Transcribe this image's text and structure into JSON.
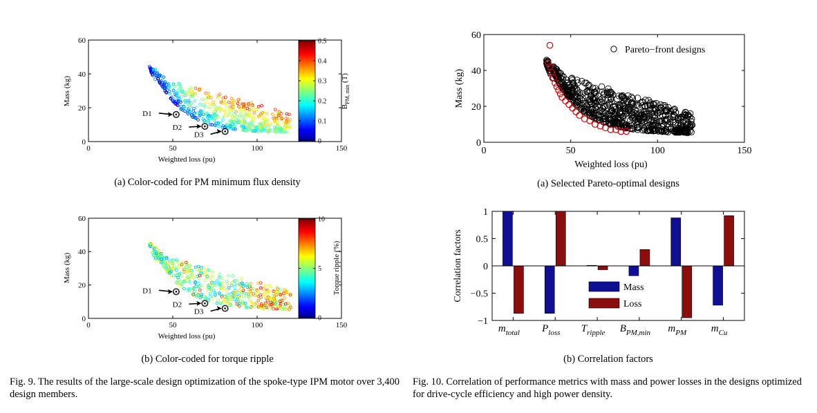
{
  "fig9": {
    "caption_a": "(a) Color-coded for PM minimum flux density",
    "caption_b": "(b) Color-coded for torque ripple",
    "caption": "Fig. 9.  The results of the large-scale design optimization of the spoke-type IPM motor over 3,400 design members.",
    "colors": {
      "jet_low": "#00008f",
      "jet_high": "#800000",
      "design_marker": "#222222"
    }
  },
  "fig10": {
    "caption_a": "(a) Selected Pareto-optimal designs",
    "caption_b": "(b) Correlation factors",
    "caption": "Fig. 10.  Correlation of performance metrics with mass and power losses in the designs optimized for drive-cycle efficiency and high power density.",
    "colors": {
      "pareto_all": "#000000",
      "pareto_front": "#cc0000"
    }
  },
  "chart_data": [
    {
      "id": "fig9a",
      "type": "scatter",
      "xlabel": "Weighted loss (pu)",
      "ylabel": "Mass (kg)",
      "xlim": [
        0,
        150
      ],
      "ylim": [
        0,
        60
      ],
      "xticks": [
        "0",
        "50",
        "100",
        "150"
      ],
      "yticks": [
        "0",
        "20",
        "40",
        "60"
      ],
      "colorbar": {
        "label": "B",
        "label_sub": "PM, min",
        "label_unit": " (T)",
        "range": [
          0,
          0.5
        ],
        "ticks": [
          "0",
          "0.1",
          "0.2",
          "0.3",
          "0.4",
          "0.5"
        ]
      },
      "points_description": "3,400 design members colored by PM minimum flux density",
      "designs": [
        {
          "label": "D1",
          "x": 52,
          "y": 16
        },
        {
          "label": "D2",
          "x": 69,
          "y": 9
        },
        {
          "label": "D3",
          "x": 81,
          "y": 6
        }
      ]
    },
    {
      "id": "fig9b",
      "type": "scatter",
      "xlabel": "Weighted loss (pu)",
      "ylabel": "Mass (kg)",
      "xlim": [
        0,
        150
      ],
      "ylim": [
        0,
        60
      ],
      "xticks": [
        "0",
        "50",
        "100",
        "150"
      ],
      "yticks": [
        "0",
        "20",
        "40",
        "60"
      ],
      "colorbar": {
        "label": "Torque ripple (%)",
        "range": [
          0,
          10
        ],
        "ticks": [
          "0",
          "5",
          "10"
        ]
      },
      "designs": [
        {
          "label": "D1",
          "x": 52,
          "y": 16
        },
        {
          "label": "D2",
          "x": 69,
          "y": 9
        },
        {
          "label": "D3",
          "x": 81,
          "y": 6
        }
      ]
    },
    {
      "id": "fig10a",
      "type": "scatter",
      "xlabel": "Weighted loss (pu)",
      "ylabel": "Mass (kg)",
      "xlim": [
        0,
        150
      ],
      "ylim": [
        0,
        60
      ],
      "xticks": [
        "0",
        "50",
        "100",
        "150"
      ],
      "yticks": [
        "0",
        "20",
        "40",
        "60"
      ],
      "legend": "Pareto−front designs",
      "legend_position": "top-right",
      "front_points": [
        [
          38,
          54
        ],
        [
          37,
          44
        ],
        [
          38,
          42
        ],
        [
          39,
          39
        ],
        [
          40,
          36
        ],
        [
          41,
          33
        ],
        [
          42,
          31
        ],
        [
          43,
          29
        ],
        [
          44,
          27
        ],
        [
          45,
          25
        ],
        [
          47,
          23
        ],
        [
          49,
          21
        ],
        [
          51,
          19
        ],
        [
          53,
          17
        ],
        [
          55,
          15
        ],
        [
          58,
          13
        ],
        [
          61,
          12
        ],
        [
          64,
          10
        ],
        [
          67,
          9
        ],
        [
          70,
          8
        ],
        [
          73,
          7
        ],
        [
          76,
          7
        ],
        [
          79,
          6
        ],
        [
          82,
          6
        ]
      ]
    },
    {
      "id": "fig10b",
      "type": "bar",
      "ylabel": "Correlation factors",
      "ylim": [
        -1,
        1
      ],
      "yticks": [
        "1",
        "0.5",
        "0",
        "−0.5",
        "−1"
      ],
      "categories": [
        {
          "main": "m",
          "sub": "total"
        },
        {
          "main": "P",
          "sub": "loss"
        },
        {
          "main": "T",
          "sub": "ripple"
        },
        {
          "main": "B",
          "sub": "PM,min"
        },
        {
          "main": "m",
          "sub": "PM"
        },
        {
          "main": "m",
          "sub": "Cu"
        }
      ],
      "series": [
        {
          "name": "Mass",
          "color": "#0f0f96",
          "values": [
            1.0,
            -0.87,
            0.01,
            -0.18,
            0.88,
            -0.72
          ]
        },
        {
          "name": "Loss",
          "color": "#8c0d0d",
          "values": [
            -0.87,
            1.0,
            -0.07,
            0.3,
            -0.95,
            0.92
          ]
        }
      ]
    }
  ]
}
